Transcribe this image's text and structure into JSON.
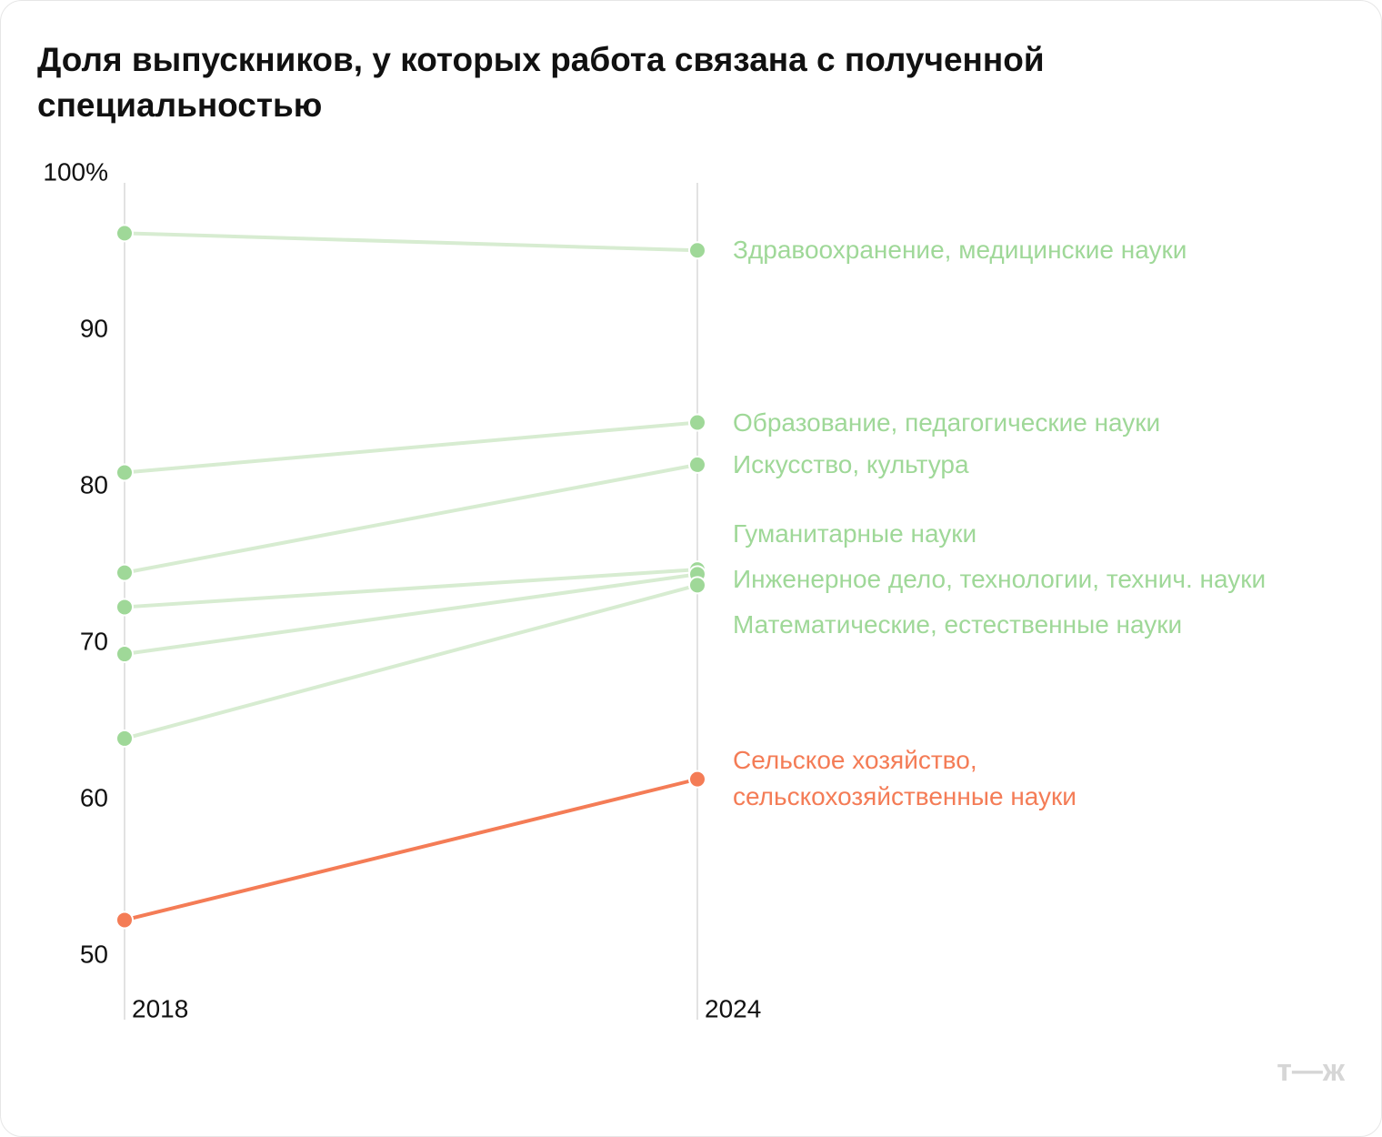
{
  "chart_data": {
    "type": "slope",
    "title": "Доля выпускников, у которых работа связана с полученной специальностью",
    "categories": [
      "2018",
      "2024"
    ],
    "ylim": [
      50,
      100
    ],
    "yticks": [
      {
        "value": 100,
        "label": "100%"
      },
      90,
      80,
      70,
      60,
      50
    ],
    "series": [
      {
        "name": "Здравоохранение, медицинские науки",
        "color": "#9fd898",
        "line_color": "#d7ecd1",
        "values": [
          96.2,
          95.1
        ]
      },
      {
        "name": "Образование, педагогические науки",
        "color": "#9fd898",
        "line_color": "#d7ecd1",
        "values": [
          80.9,
          84.1
        ]
      },
      {
        "name": "Искусство, культура",
        "color": "#9fd898",
        "line_color": "#d7ecd1",
        "values": [
          74.5,
          81.4
        ]
      },
      {
        "name": "Гуманитарные науки",
        "color": "#9fd898",
        "line_color": "#d7ecd1",
        "values": [
          72.3,
          74.7
        ]
      },
      {
        "name": "Инженерное дело, технологии, технич. науки",
        "color": "#9fd898",
        "line_color": "#d7ecd1",
        "values": [
          69.3,
          74.4
        ]
      },
      {
        "name": "Математические, естественные науки",
        "color": "#9fd898",
        "line_color": "#d7ecd1",
        "values": [
          63.9,
          73.7
        ]
      },
      {
        "name": "Сельское хозяйство, сельскохозяйственные науки",
        "color": "#f47c56",
        "line_color": "#f47c56",
        "values": [
          52.3,
          61.3
        ]
      }
    ],
    "logo": "т—ж"
  }
}
